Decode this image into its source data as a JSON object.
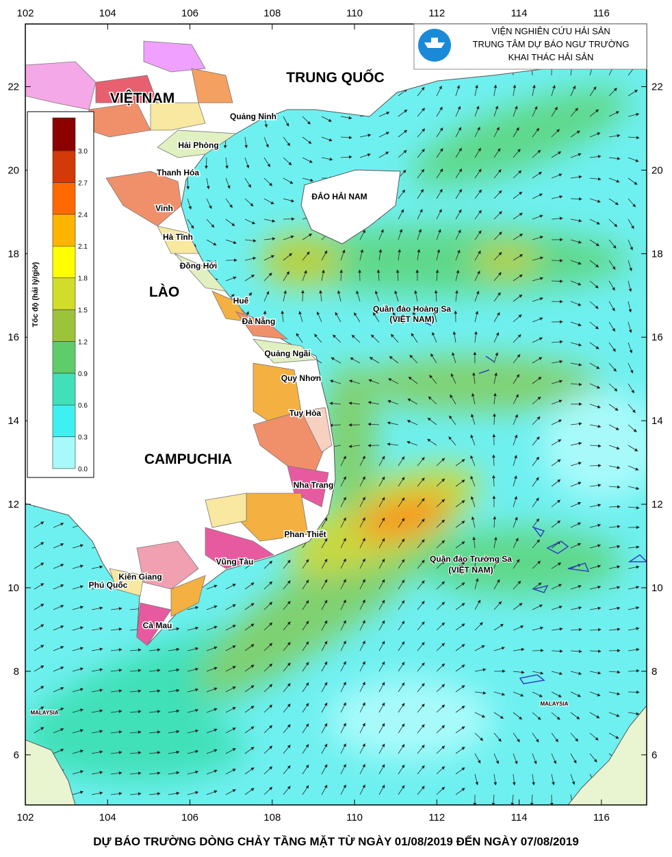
{
  "header": {
    "lines": [
      "VIỆN NGHIÊN CỨU HẢI SẢN",
      "TRUNG TÂM DỰ BÁO NGƯ TRƯỜNG",
      "KHAI THÁC HẢI SẢN"
    ]
  },
  "map": {
    "xlim": [
      102,
      117.1
    ],
    "ylim": [
      4.8,
      23.5
    ],
    "xticks": [
      102,
      104,
      106,
      108,
      110,
      112,
      114,
      116
    ],
    "yticks": [
      6,
      8,
      10,
      12,
      14,
      16,
      18,
      20,
      22
    ]
  },
  "legend": {
    "title": "Tốc độ (hải lý/giờ)",
    "ticks": [
      {
        "value": 0,
        "label": "0.0"
      },
      0.3,
      0.6,
      0.9,
      1.2,
      1.5,
      1.8,
      2.1,
      2.4,
      2.7,
      {
        "value": 3,
        "label": "3.0"
      }
    ],
    "colors": [
      "#a8fafa",
      "#3ff0f0",
      "#40e0b8",
      "#5fcc6a",
      "#9cc43a",
      "#d2dc2a",
      "#ffff00",
      "#ffb400",
      "#ff6a00",
      "#d23a0a",
      "#8c0000"
    ]
  },
  "labels": {
    "countries": [
      "TRUNG QUỐC",
      "VIỆTNAM",
      "LÀO",
      "CAMPUCHIA"
    ],
    "places": [
      "Quảng Ninh",
      "Hải Phòng",
      "Thanh Hóa",
      "Vinh",
      "Hà Tĩnh",
      "Đồng Hới",
      "Huế",
      "Đà Nẵng",
      "Quảng Ngãi",
      "Quy Nhơn",
      "Tuy Hòa",
      "Nha Trang",
      "Phan Thiết",
      "Vũng Tàu",
      "Kiên Giang",
      "Phú Quốc",
      "Cà Mau"
    ],
    "islands": [
      "ĐẢO HẢI NAM",
      "Quần đảo Hoàng Sa",
      "(VIỆT NAM)",
      "Quần đảo Trường Sa",
      "(VIỆT NAM)",
      "MALAYSIA",
      "MALAYSIA"
    ]
  },
  "caption": "DỰ BÁO TRƯỜNG DÒNG CHẢY TẦNG MẶT TỪ NGÀY 01/08/2019 ĐẾN NGÀY 07/08/2019"
}
